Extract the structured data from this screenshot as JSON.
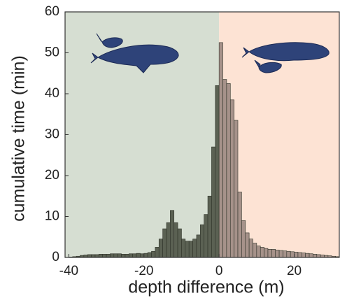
{
  "chart_data": {
    "type": "histogram",
    "xlabel": "depth difference (m)",
    "ylabel": "cumulative time (min)",
    "bins": [
      -41,
      -40,
      -39,
      -38,
      -37,
      -36,
      -35,
      -34,
      -33,
      -32,
      -31,
      -30,
      -29,
      -28,
      -27,
      -26,
      -25,
      -24,
      -23,
      -22,
      -21,
      -20,
      -19,
      -18,
      -17,
      -16,
      -15,
      -14,
      -13,
      -12,
      -11,
      -10,
      -9,
      -8,
      -7,
      -6,
      -5,
      -4,
      -3,
      -2,
      -1,
      0,
      1,
      2,
      3,
      4,
      5,
      6,
      7,
      8,
      9,
      10,
      11,
      12,
      13,
      14,
      15,
      16,
      17,
      18,
      19,
      20,
      21,
      22,
      23,
      24,
      25,
      26,
      27,
      28,
      29,
      30,
      31,
      32
    ],
    "counts": [
      0,
      0.1,
      0.2,
      0.3,
      0.5,
      0.6,
      0.7,
      0.7,
      0.7,
      0.8,
      0.8,
      0.8,
      0.9,
      0.9,
      0.9,
      0.8,
      0.8,
      0.9,
      0.9,
      1.0,
      0.9,
      1.0,
      1.2,
      1.5,
      2.5,
      4.5,
      7,
      8.5,
      11.5,
      8.5,
      7,
      4.5,
      4,
      4,
      4.5,
      5.5,
      8,
      10.5,
      15,
      27,
      42,
      52.5,
      43.5,
      42.5,
      38.5,
      33.5,
      16,
      9,
      6,
      4.5,
      3.5,
      2.8,
      2.5,
      2.2,
      2,
      2,
      1.8,
      1.7,
      1.6,
      1.5,
      1.4,
      1.3,
      1.2,
      1.1,
      1,
      0.9,
      0.8,
      0.7,
      0.6,
      0.5,
      0.4,
      0.3,
      0.2,
      0.1
    ],
    "colors": [
      "#5b6153",
      "#a6928a"
    ],
    "background_colors": [
      "#d6ded2",
      "#fde3d4"
    ],
    "xlim": [
      -41,
      32
    ],
    "xticks": [
      -40,
      -20,
      0,
      20
    ],
    "ylim": [
      0,
      60
    ],
    "yticks": [
      0,
      10,
      20,
      30,
      40,
      50,
      60
    ]
  }
}
